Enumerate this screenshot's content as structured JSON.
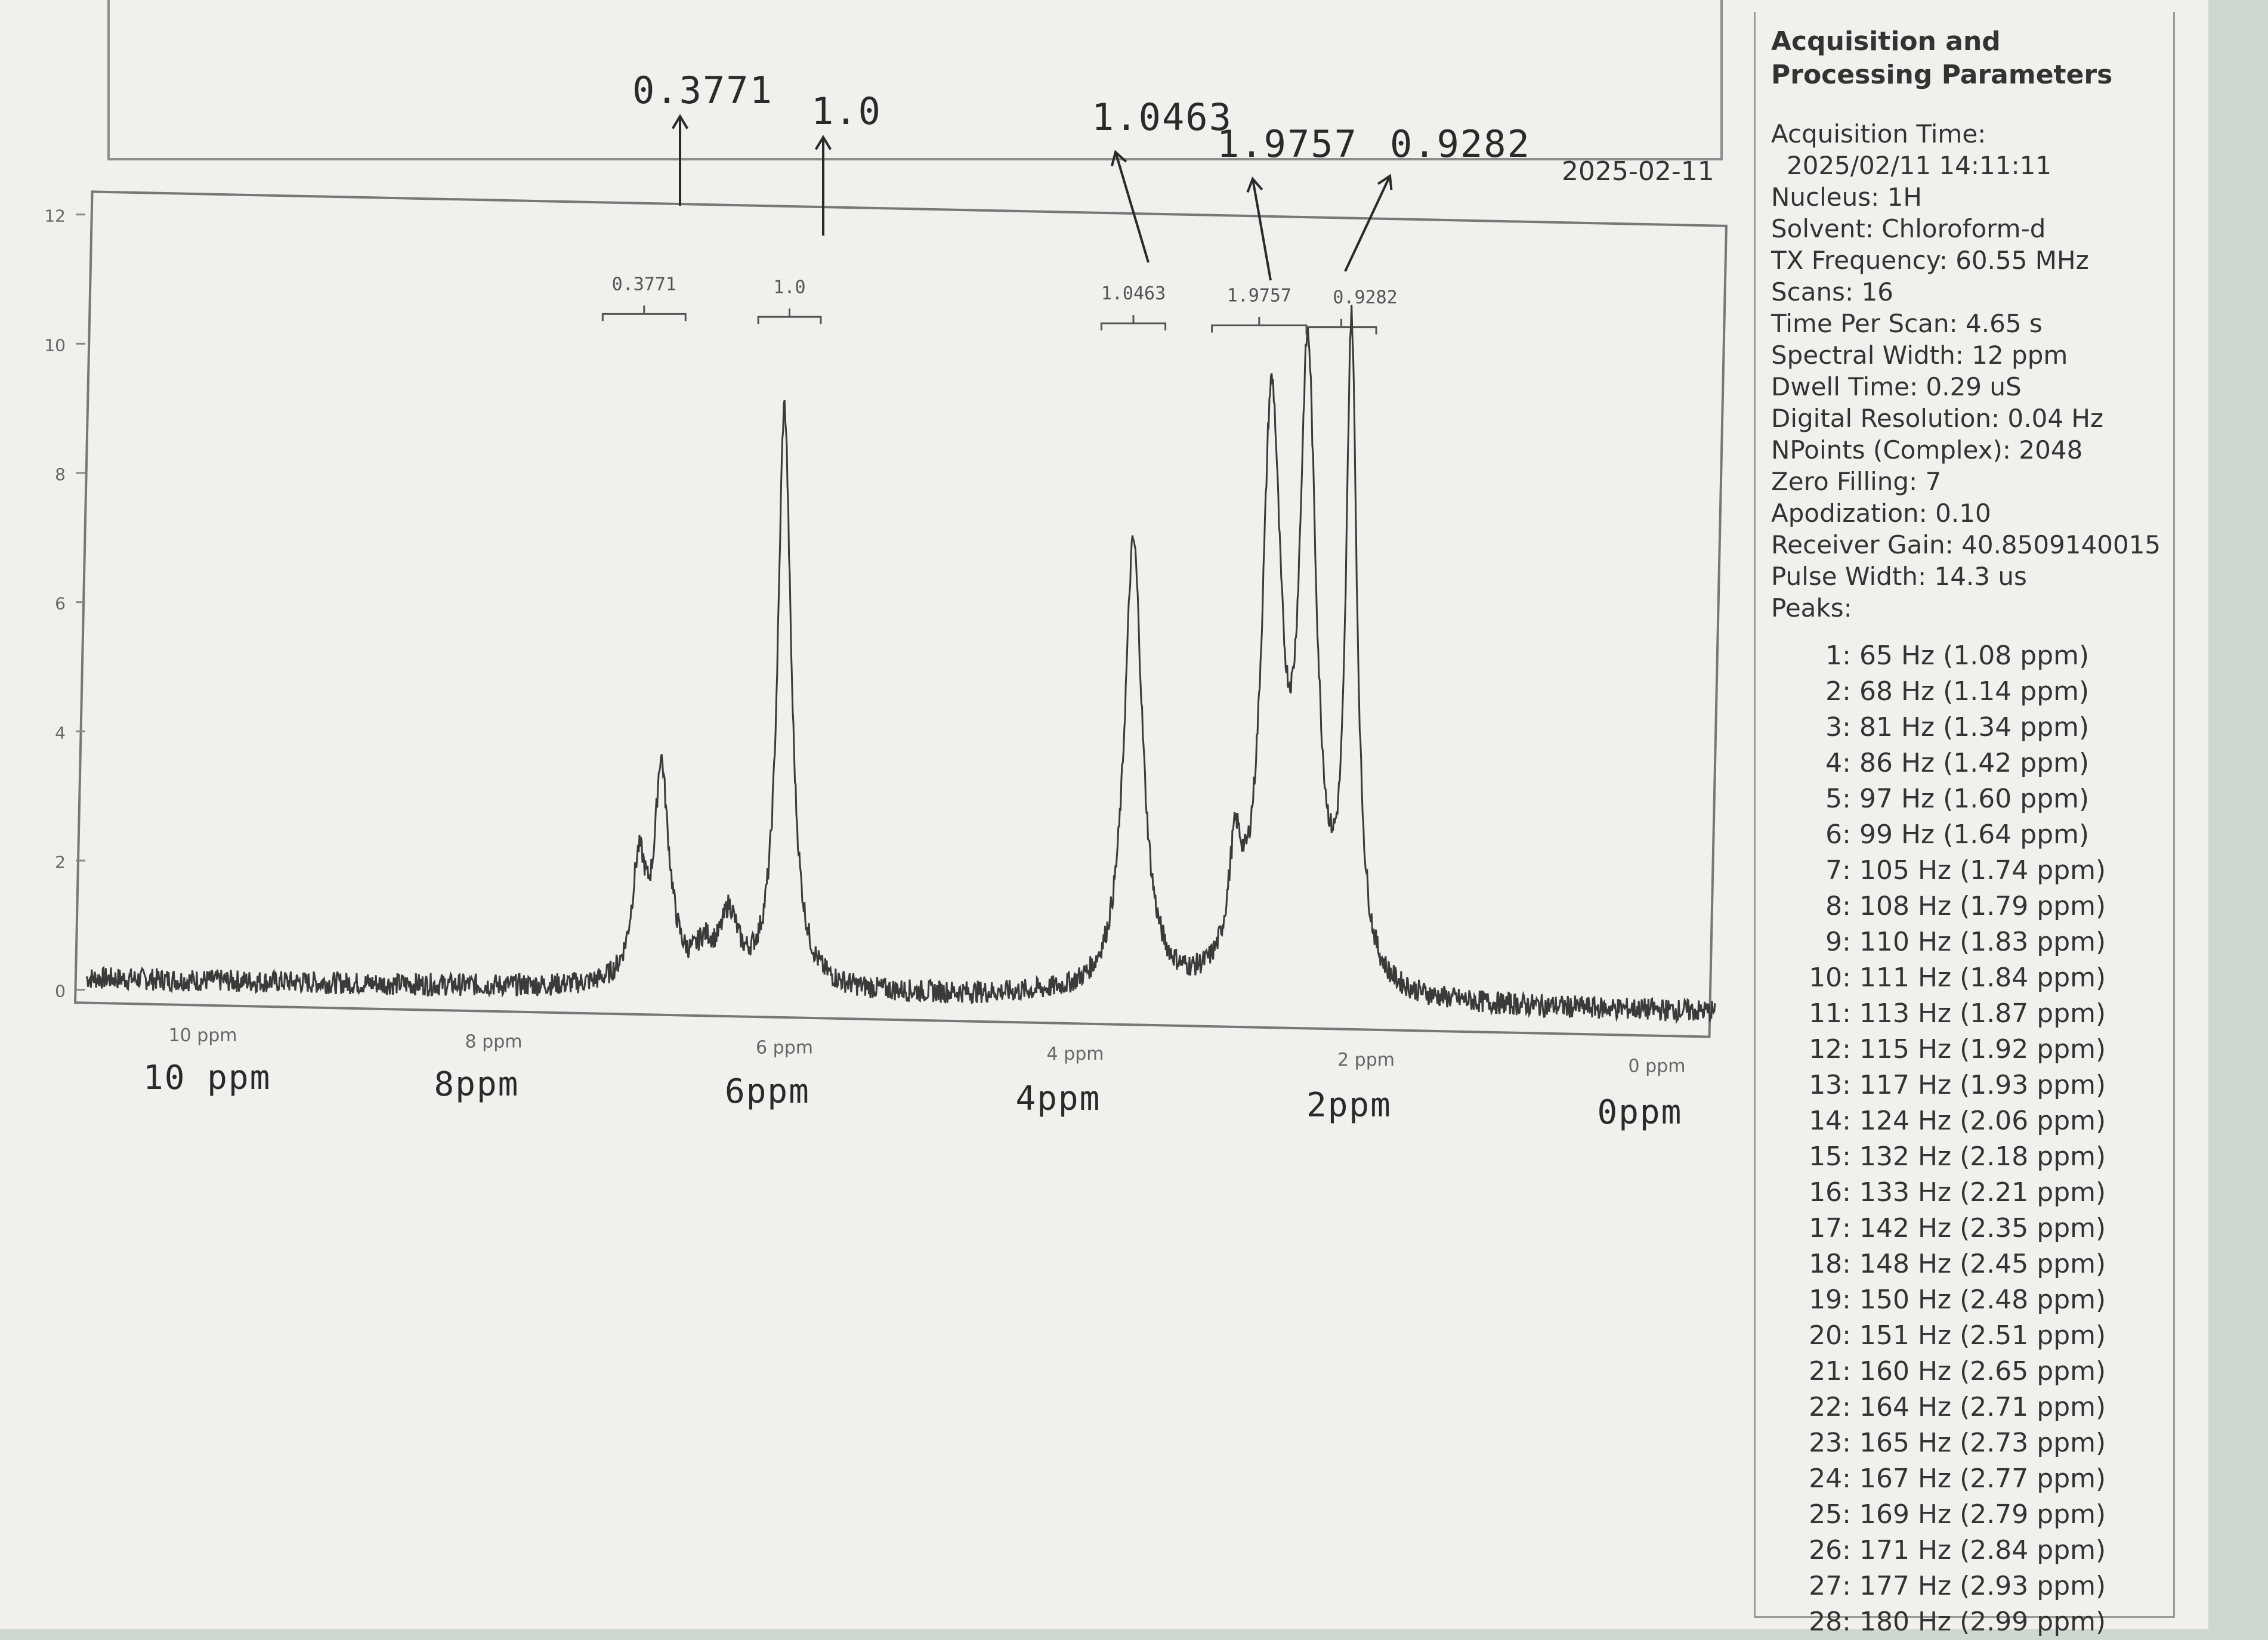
{
  "printed_date": "2025-02-11",
  "chart_data": {
    "type": "line",
    "title": "",
    "xlabel": "",
    "ylabel": "",
    "x_unit": "ppm",
    "xlim": [
      10.8,
      -0.4
    ],
    "ylim": [
      0,
      12
    ],
    "x_reversed": true,
    "x_ticks": [
      {
        "value": 10,
        "label": "10 ppm",
        "handwritten": "10 ppm"
      },
      {
        "value": 8,
        "label": "8 ppm",
        "handwritten": "8ppm"
      },
      {
        "value": 6,
        "label": "6 ppm",
        "handwritten": "6ppm"
      },
      {
        "value": 4,
        "label": "4 ppm",
        "handwritten": "4ppm"
      },
      {
        "value": 2,
        "label": "2 ppm",
        "handwritten": "2ppm"
      },
      {
        "value": 0,
        "label": "0 ppm",
        "handwritten": "0ppm"
      }
    ],
    "y_ticks": [
      {
        "value": 0,
        "label": "0"
      },
      {
        "value": 2,
        "label": "2"
      },
      {
        "value": 4,
        "label": "4"
      },
      {
        "value": 6,
        "label": "6"
      },
      {
        "value": 8,
        "label": "8"
      },
      {
        "value": 10,
        "label": "10"
      },
      {
        "value": 12,
        "label": "12"
      }
    ],
    "peaks": [
      {
        "center": 7.0,
        "height": 1.8,
        "width": 0.06
      },
      {
        "center": 6.85,
        "height": 2.8,
        "width": 0.05
      },
      {
        "center": 6.8,
        "height": 0.7,
        "width": 0.07
      },
      {
        "center": 6.55,
        "height": 0.5,
        "width": 0.08
      },
      {
        "center": 6.38,
        "height": 1.0,
        "width": 0.07
      },
      {
        "center": 6.0,
        "height": 9.0,
        "width": 0.055
      },
      {
        "center": 3.6,
        "height": 7.0,
        "width": 0.075
      },
      {
        "center": 2.9,
        "height": 1.7,
        "width": 0.055
      },
      {
        "center": 2.65,
        "height": 8.8,
        "width": 0.08
      },
      {
        "center": 2.4,
        "height": 9.3,
        "width": 0.07
      },
      {
        "center": 2.1,
        "height": 10.0,
        "width": 0.045
      }
    ],
    "integrals": [
      {
        "label": "0.3771",
        "x_start": 7.25,
        "x_end": 6.68,
        "handwritten": "0.3771"
      },
      {
        "label": "1.0",
        "x_start": 6.18,
        "x_end": 5.75,
        "handwritten": "1.0"
      },
      {
        "label": "1.0463",
        "x_start": 3.82,
        "x_end": 3.38,
        "handwritten": "1.0463"
      },
      {
        "label": "1.9757",
        "x_start": 3.06,
        "x_end": 2.41,
        "handwritten": "1.9757"
      },
      {
        "label": "0.9282",
        "x_start": 2.41,
        "x_end": 1.93,
        "handwritten": "0.9282"
      }
    ]
  },
  "parameters": {
    "title": "Acquisition and Processing Parameters",
    "items": [
      {
        "text": "Acquisition Time:",
        "indent": false
      },
      {
        "text": "2025/02/11 14:11:11",
        "indent": true
      },
      {
        "text": "Nucleus: 1H",
        "indent": false
      },
      {
        "text": "Solvent: Chloroform-d",
        "indent": false
      },
      {
        "text": "TX Frequency: 60.55 MHz",
        "indent": false
      },
      {
        "text": "Scans: 16",
        "indent": false
      },
      {
        "text": "Time Per Scan: 4.65 s",
        "indent": false
      },
      {
        "text": "Spectral Width: 12 ppm",
        "indent": false
      },
      {
        "text": "Dwell Time: 0.29 uS",
        "indent": false
      },
      {
        "text": "Digital Resolution: 0.04 Hz",
        "indent": false
      },
      {
        "text": "NPoints (Complex): 2048",
        "indent": false
      },
      {
        "text": "Zero Filling: 7",
        "indent": false
      },
      {
        "text": "Apodization: 0.10",
        "indent": false
      },
      {
        "text": "Receiver Gain: 40.8509140015",
        "indent": false
      },
      {
        "text": "Pulse Width: 14.3 us",
        "indent": false
      },
      {
        "text": "Peaks:",
        "indent": false
      }
    ],
    "peaks": [
      {
        "num": "1:",
        "text": "65 Hz (1.08 ppm)"
      },
      {
        "num": "2:",
        "text": "68 Hz (1.14 ppm)"
      },
      {
        "num": "3:",
        "text": "81 Hz (1.34 ppm)"
      },
      {
        "num": "4:",
        "text": "86 Hz (1.42 ppm)"
      },
      {
        "num": "5:",
        "text": "97 Hz (1.60 ppm)"
      },
      {
        "num": "6:",
        "text": "99 Hz (1.64 ppm)"
      },
      {
        "num": "7:",
        "text": "105 Hz (1.74 ppm)"
      },
      {
        "num": "8:",
        "text": "108 Hz (1.79 ppm)"
      },
      {
        "num": "9:",
        "text": "110 Hz (1.83 ppm)"
      },
      {
        "num": "10:",
        "text": "111 Hz (1.84 ppm)"
      },
      {
        "num": "11:",
        "text": "113 Hz (1.87 ppm)"
      },
      {
        "num": "12:",
        "text": "115 Hz (1.92 ppm)"
      },
      {
        "num": "13:",
        "text": "117 Hz (1.93 ppm)"
      },
      {
        "num": "14:",
        "text": "124 Hz (2.06 ppm)"
      },
      {
        "num": "15:",
        "text": "132 Hz (2.18 ppm)"
      },
      {
        "num": "16:",
        "text": "133 Hz (2.21 ppm)"
      },
      {
        "num": "17:",
        "text": "142 Hz (2.35 ppm)"
      },
      {
        "num": "18:",
        "text": "148 Hz (2.45 ppm)"
      },
      {
        "num": "19:",
        "text": "150 Hz (2.48 ppm)"
      },
      {
        "num": "20:",
        "text": "151 Hz (2.51 ppm)"
      },
      {
        "num": "21:",
        "text": "160 Hz (2.65 ppm)"
      },
      {
        "num": "22:",
        "text": "164 Hz (2.71 ppm)"
      },
      {
        "num": "23:",
        "text": "165 Hz (2.73 ppm)"
      },
      {
        "num": "24:",
        "text": "167 Hz (2.77 ppm)"
      },
      {
        "num": "25:",
        "text": "169 Hz (2.79 ppm)"
      },
      {
        "num": "26:",
        "text": "171 Hz (2.84 ppm)"
      },
      {
        "num": "27:",
        "text": "177 Hz (2.93 ppm)"
      },
      {
        "num": "28:",
        "text": "180 Hz (2.99 ppm)"
      }
    ]
  }
}
